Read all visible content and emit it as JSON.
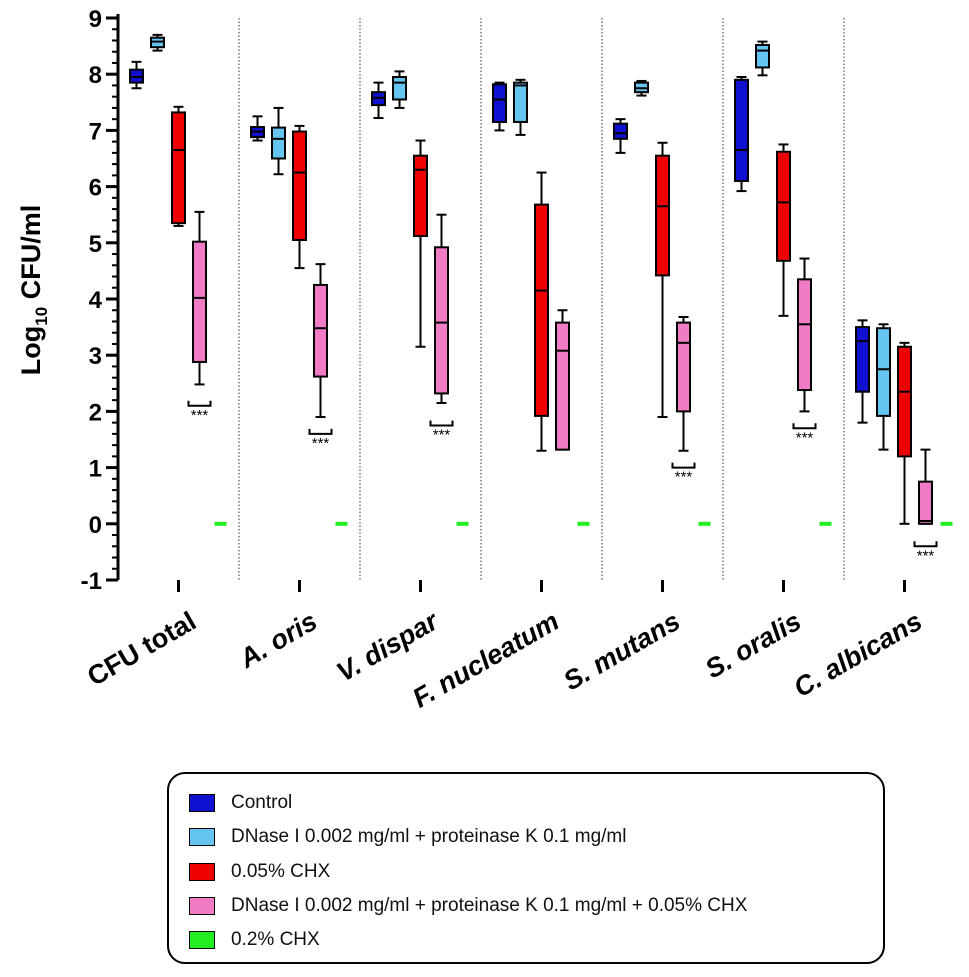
{
  "chart_data": {
    "type": "box",
    "ylabel": "Log10 CFU/ml",
    "ylabel_main": "Log",
    "ylabel_sub": "10",
    "ylabel_rest": " CFU/ml",
    "ylim": [
      -1,
      9
    ],
    "yticks": [
      "-1",
      "0",
      "1",
      "2",
      "3",
      "4",
      "5",
      "6",
      "7",
      "8",
      "9"
    ],
    "categories": [
      {
        "label": "CFU total",
        "italic": false
      },
      {
        "label": "A. oris",
        "italic": true
      },
      {
        "label": "V. dispar",
        "italic": true
      },
      {
        "label": "F. nucleatum",
        "italic": true
      },
      {
        "label": "S. mutans",
        "italic": true
      },
      {
        "label": "S. oralis",
        "italic": true
      },
      {
        "label": "C. albicans",
        "italic": true
      }
    ],
    "series": [
      {
        "name": "Control",
        "color": "#1010d0",
        "boxes": [
          {
            "min": 7.75,
            "q1": 7.85,
            "median": 7.95,
            "q3": 8.08,
            "max": 8.22
          },
          {
            "min": 6.82,
            "q1": 6.88,
            "median": 6.98,
            "q3": 7.06,
            "max": 7.25
          },
          {
            "min": 7.22,
            "q1": 7.45,
            "median": 7.58,
            "q3": 7.68,
            "max": 7.85
          },
          {
            "min": 7.0,
            "q1": 7.15,
            "median": 7.55,
            "q3": 7.82,
            "max": 7.85
          },
          {
            "min": 6.6,
            "q1": 6.85,
            "median": 6.95,
            "q3": 7.12,
            "max": 7.2
          },
          {
            "min": 5.92,
            "q1": 6.1,
            "median": 6.65,
            "q3": 7.9,
            "max": 7.95
          },
          {
            "min": 1.8,
            "q1": 2.35,
            "median": 3.25,
            "q3": 3.5,
            "max": 3.62
          }
        ]
      },
      {
        "name": "DNase I 0.002 mg/ml + proteinase K 0.1 mg/ml",
        "color": "#66c4f0",
        "boxes": [
          {
            "min": 8.42,
            "q1": 8.48,
            "median": 8.58,
            "q3": 8.65,
            "max": 8.7
          },
          {
            "min": 6.22,
            "q1": 6.5,
            "median": 6.85,
            "q3": 7.05,
            "max": 7.4
          },
          {
            "min": 7.4,
            "q1": 7.55,
            "median": 7.85,
            "q3": 7.95,
            "max": 8.05
          },
          {
            "min": 6.92,
            "q1": 7.15,
            "median": 7.8,
            "q3": 7.85,
            "max": 7.9
          },
          {
            "min": 7.62,
            "q1": 7.68,
            "median": 7.75,
            "q3": 7.85,
            "max": 7.88
          },
          {
            "min": 7.98,
            "q1": 8.12,
            "median": 8.42,
            "q3": 8.52,
            "max": 8.58
          },
          {
            "min": 1.32,
            "q1": 1.92,
            "median": 2.75,
            "q3": 3.48,
            "max": 3.55
          }
        ]
      },
      {
        "name": "0.05% CHX",
        "color": "#ee0000",
        "boxes": [
          {
            "min": 5.3,
            "q1": 5.35,
            "median": 6.65,
            "q3": 7.32,
            "max": 7.42
          },
          {
            "min": 4.55,
            "q1": 5.05,
            "median": 6.25,
            "q3": 6.98,
            "max": 7.08
          },
          {
            "min": 3.15,
            "q1": 5.12,
            "median": 6.3,
            "q3": 6.55,
            "max": 6.82
          },
          {
            "min": 1.3,
            "q1": 1.92,
            "median": 4.15,
            "q3": 5.68,
            "max": 6.25
          },
          {
            "min": 1.9,
            "q1": 4.42,
            "median": 5.65,
            "q3": 6.55,
            "max": 6.78
          },
          {
            "min": 3.7,
            "q1": 4.68,
            "median": 5.72,
            "q3": 6.62,
            "max": 6.75
          },
          {
            "min": 0.0,
            "q1": 1.2,
            "median": 2.35,
            "q3": 3.15,
            "max": 3.22
          }
        ]
      },
      {
        "name": "DNase I 0.002 mg/ml + proteinase K 0.1 mg/ml + 0.05% CHX",
        "color": "#f07cc6",
        "boxes": [
          {
            "min": 2.48,
            "q1": 2.88,
            "median": 4.02,
            "q3": 5.02,
            "max": 5.55
          },
          {
            "min": 1.9,
            "q1": 2.62,
            "median": 3.48,
            "q3": 4.25,
            "max": 4.62
          },
          {
            "min": 2.15,
            "q1": 2.32,
            "median": 3.58,
            "q3": 4.92,
            "max": 5.5
          },
          {
            "min": 1.32,
            "q1": 1.32,
            "median": 3.08,
            "q3": 3.58,
            "max": 3.8
          },
          {
            "min": 1.3,
            "q1": 2.0,
            "median": 3.22,
            "q3": 3.58,
            "max": 3.68
          },
          {
            "min": 2.0,
            "q1": 2.38,
            "median": 3.55,
            "q3": 4.35,
            "max": 4.72
          },
          {
            "min": 0.0,
            "q1": 0.0,
            "median": 0.05,
            "q3": 0.75,
            "max": 1.32
          }
        ]
      },
      {
        "name": "0.2% CHX",
        "color": "#22ee22",
        "values": [
          0,
          0,
          0,
          0,
          0,
          0,
          0
        ]
      }
    ],
    "annotations": [
      {
        "category": "CFU total",
        "text": "***",
        "y": 2.1
      },
      {
        "category": "A. oris",
        "text": "***",
        "y": 1.6
      },
      {
        "category": "V. dispar",
        "text": "***",
        "y": 1.75
      },
      {
        "category": "S. mutans",
        "text": "***",
        "y": 1.0
      },
      {
        "category": "S. oralis",
        "text": "***",
        "y": 1.7
      },
      {
        "category": "C. albicans",
        "text": "***",
        "y": -0.4
      }
    ],
    "legend_position": "bottom"
  }
}
